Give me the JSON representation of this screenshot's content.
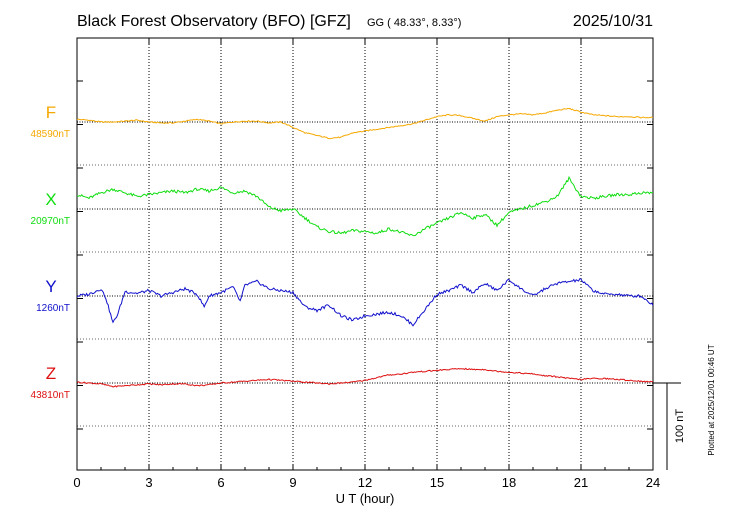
{
  "header": {
    "title": "Black Forest Observatory (BFO)  [GFZ]",
    "coords": "GG ( 48.33°,   8.33°)",
    "date": "2025/10/31"
  },
  "plotted_note": "Plotted at 2025/12/01 00:46 UT",
  "colors": {
    "F": "#f5a800",
    "X": "#10dd10",
    "Y": "#1010cc",
    "Z": "#dd1010",
    "axis": "#000000",
    "grid": "#000000"
  },
  "chart_data": {
    "type": "line",
    "xlabel": "U T (hour)",
    "xlim": [
      0,
      24
    ],
    "xticks": [
      "0",
      "3",
      "6",
      "9",
      "12",
      "15",
      "18",
      "21",
      "24"
    ],
    "grid": true,
    "scale_bar": "100 nT",
    "series": [
      {
        "name": "F",
        "baseline_label": "48590nT",
        "x": [
          0,
          0.5,
          1,
          1.5,
          2,
          2.5,
          3,
          3.5,
          4,
          4.5,
          5,
          5.5,
          6,
          6.5,
          7,
          7.5,
          8,
          8.5,
          9,
          9.5,
          10,
          10.5,
          11,
          11.5,
          12,
          12.5,
          13,
          13.5,
          14,
          14.5,
          15,
          15.5,
          16,
          16.5,
          17,
          17.5,
          18,
          18.5,
          19,
          19.5,
          20,
          20.5,
          21,
          21.5,
          22,
          22.5,
          23,
          23.5,
          24
        ],
        "values": [
          3,
          2,
          0,
          0,
          1,
          2,
          0,
          -1,
          -1,
          1,
          3,
          1,
          -2,
          0,
          1,
          1,
          -1,
          0,
          -6,
          -12,
          -15,
          -18,
          -17,
          -12,
          -10,
          -8,
          -6,
          -4,
          -2,
          2,
          6,
          8,
          7,
          4,
          1,
          6,
          8,
          9,
          8,
          10,
          13,
          15,
          11,
          8,
          7,
          6,
          6,
          5,
          5
        ]
      },
      {
        "name": "X",
        "baseline_label": "20970nT",
        "x": [
          0,
          0.5,
          1,
          1.5,
          2,
          2.5,
          3,
          3.5,
          4,
          4.5,
          5,
          5.5,
          6,
          6.5,
          7,
          7.5,
          8,
          8.5,
          9,
          9.5,
          10,
          10.5,
          11,
          11.5,
          12,
          12.5,
          13,
          13.5,
          14,
          14.5,
          15,
          15.5,
          16,
          16.5,
          17,
          17.5,
          18,
          18.5,
          19,
          19.5,
          20,
          20.5,
          21,
          21.5,
          22,
          22.5,
          23,
          23.5,
          24
        ],
        "values": [
          16,
          12,
          18,
          22,
          18,
          14,
          16,
          18,
          20,
          18,
          22,
          20,
          24,
          18,
          20,
          14,
          2,
          -2,
          0,
          -10,
          -20,
          -25,
          -27,
          -24,
          -25,
          -27,
          -22,
          -26,
          -30,
          -22,
          -16,
          -10,
          -4,
          -10,
          -6,
          -18,
          -4,
          0,
          4,
          8,
          14,
          34,
          14,
          12,
          14,
          16,
          16,
          18,
          18
        ]
      },
      {
        "name": "Y",
        "baseline_label": "1260nT",
        "x": [
          0,
          0.5,
          1,
          1.2,
          1.5,
          1.7,
          2,
          2.5,
          3,
          3.5,
          4,
          4.5,
          5,
          5.3,
          5.5,
          6,
          6.5,
          6.8,
          7,
          7.5,
          8,
          8.5,
          9,
          9.5,
          10,
          10.5,
          11,
          11.5,
          12,
          12.5,
          13,
          13.5,
          14,
          14.5,
          15,
          15.5,
          16,
          16.5,
          17,
          17.5,
          18,
          18.5,
          19,
          19.5,
          20,
          20.5,
          21,
          21.5,
          22,
          22.5,
          23,
          23.5,
          24
        ],
        "values": [
          0,
          2,
          8,
          -2,
          -30,
          -20,
          5,
          3,
          6,
          0,
          4,
          8,
          2,
          -12,
          0,
          4,
          10,
          -6,
          12,
          16,
          8,
          6,
          4,
          -12,
          -16,
          -10,
          -22,
          -27,
          -22,
          -20,
          -18,
          -22,
          -32,
          -15,
          2,
          6,
          12,
          4,
          14,
          6,
          18,
          8,
          0,
          8,
          14,
          16,
          18,
          6,
          2,
          2,
          0,
          0,
          -10
        ]
      },
      {
        "name": "Z",
        "baseline_label": "43810nT",
        "x": [
          0,
          0.5,
          1,
          1.5,
          2,
          2.5,
          3,
          3.5,
          4,
          4.5,
          5,
          5.5,
          6,
          6.5,
          7,
          7.5,
          8,
          8.5,
          9,
          9.5,
          10,
          10.5,
          11,
          11.5,
          12,
          12.5,
          13,
          13.5,
          14,
          14.5,
          15,
          15.5,
          16,
          16.5,
          17,
          17.5,
          18,
          18.5,
          19,
          19.5,
          20,
          20.5,
          21,
          21.5,
          22,
          22.5,
          23,
          23.5,
          24
        ],
        "values": [
          1,
          0,
          -1,
          -4,
          -3,
          -2,
          -1,
          -2,
          -1,
          -1,
          -3,
          -2,
          0,
          1,
          2,
          3,
          4,
          3,
          2,
          1,
          0,
          -1,
          0,
          1,
          3,
          6,
          9,
          10,
          12,
          13,
          14,
          15,
          16,
          15,
          15,
          13,
          12,
          11,
          10,
          8,
          7,
          5,
          4,
          5,
          5,
          4,
          3,
          2,
          1
        ]
      }
    ]
  }
}
